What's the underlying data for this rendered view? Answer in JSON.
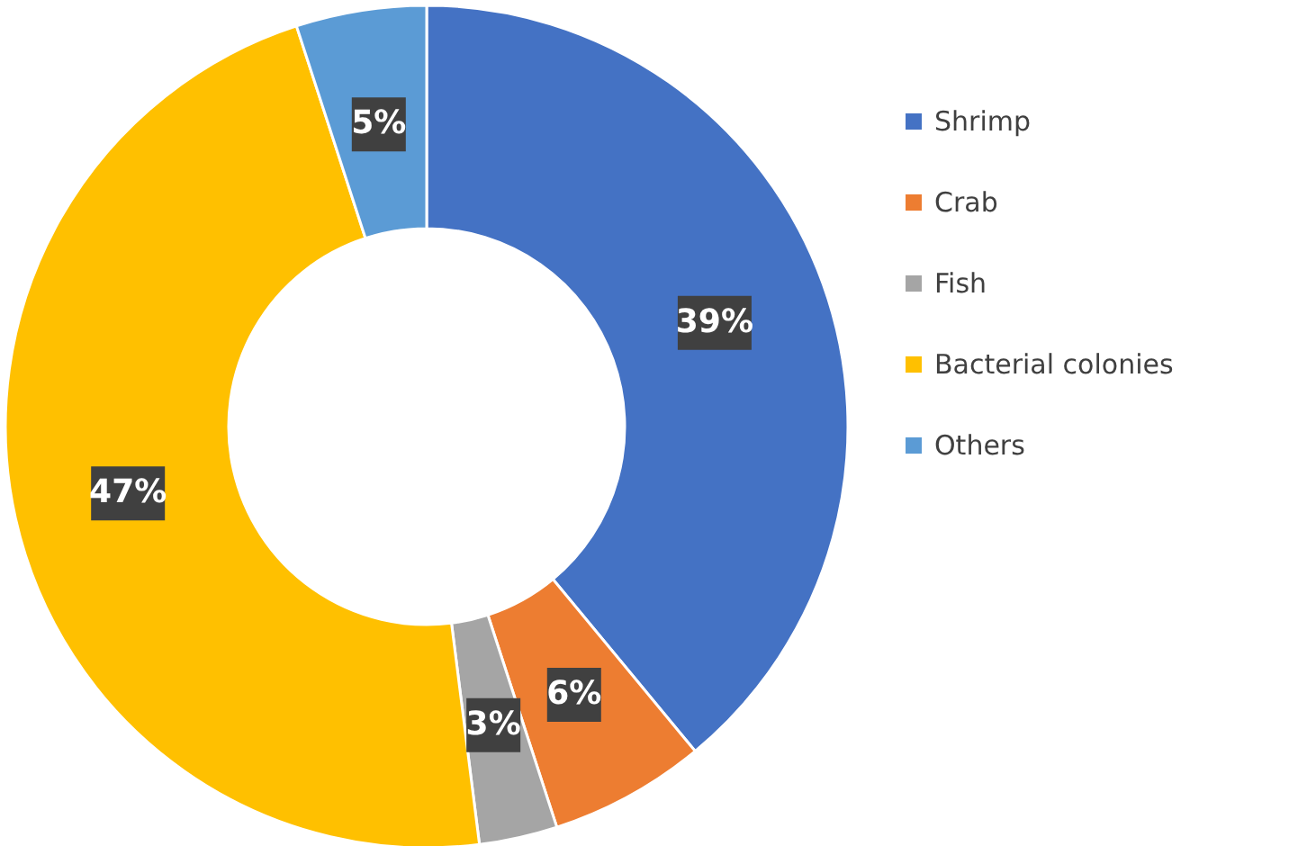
{
  "chart_data": {
    "type": "donut",
    "categories": [
      "Shrimp",
      "Crab",
      "Fish",
      "Bacterial colonies",
      "Others"
    ],
    "values": [
      39,
      6,
      3,
      47,
      5
    ],
    "colors": [
      "#4472c4",
      "#ed7d31",
      "#a5a5a5",
      "#ffc000",
      "#5b9bd5"
    ],
    "value_labels": [
      "39%",
      "6%",
      "3%",
      "47%",
      "5%"
    ],
    "legend": "right"
  }
}
